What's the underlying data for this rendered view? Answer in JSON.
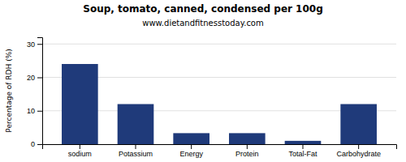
{
  "chart_data": {
    "type": "bar",
    "title": "Soup, tomato, canned, condensed per 100g",
    "subtitle": "www.dietandfitnesstoday.com",
    "categories": [
      "sodium",
      "Potassium",
      "Energy",
      "Protein",
      "Total-Fat",
      "Carbohydrate"
    ],
    "values": [
      24.0,
      12.0,
      3.3,
      3.3,
      1.0,
      12.0
    ],
    "color": "#1f3a7a",
    "ylabel": "Percentage of RDH (%)",
    "ylim": [
      0,
      32
    ],
    "yticks": [
      0,
      10,
      20,
      30
    ],
    "grid": true
  }
}
